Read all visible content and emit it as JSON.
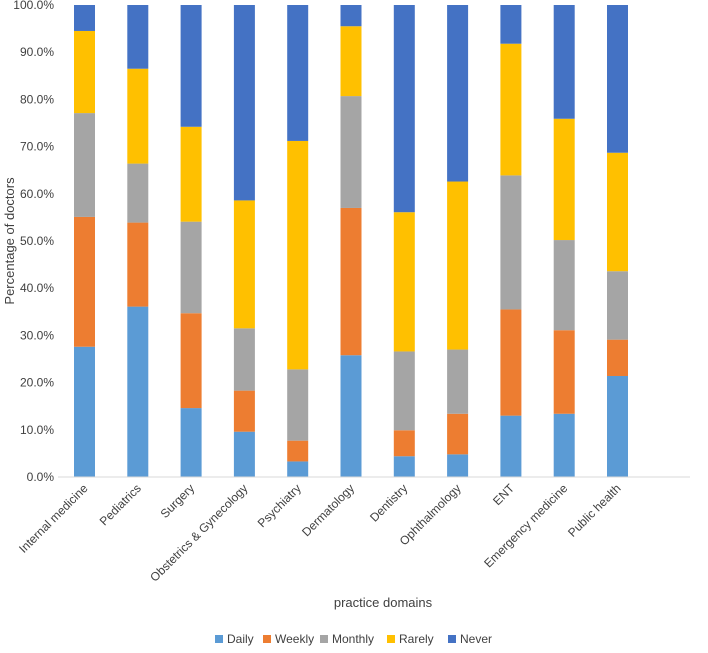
{
  "chart_data": {
    "type": "bar",
    "stacked": true,
    "title": "",
    "xlabel": "practice domains",
    "ylabel": "Percentage of doctors",
    "ylim": [
      0,
      100
    ],
    "ytick_step": 10,
    "ytick_labels": [
      "0.0%",
      "10.0%",
      "20.0%",
      "30.0%",
      "40.0%",
      "50.0%",
      "60.0%",
      "70.0%",
      "80.0%",
      "90.0%",
      "100.0%"
    ],
    "categories": [
      "Internal medicine",
      "Pediatrics",
      "Surgery",
      "Obstetrics & Gynecology",
      "Psychiatry",
      "Dermatology",
      "Dentistry",
      "Ophthalmology",
      "ENT",
      "Emergency medicine",
      "Public health"
    ],
    "series": [
      {
        "name": "Daily",
        "color": "#5B9BD5",
        "values": [
          27.6,
          36.1,
          14.6,
          9.6,
          3.3,
          25.8,
          4.4,
          4.8,
          13.0,
          13.4,
          21.4
        ]
      },
      {
        "name": "Weekly",
        "color": "#ED7D31",
        "values": [
          27.5,
          17.8,
          20.1,
          8.7,
          4.4,
          31.2,
          5.5,
          8.6,
          22.5,
          17.7,
          7.7
        ]
      },
      {
        "name": "Monthly",
        "color": "#A5A5A5",
        "values": [
          22.0,
          12.5,
          19.4,
          13.2,
          15.1,
          23.7,
          16.7,
          13.6,
          28.4,
          19.1,
          14.5
        ]
      },
      {
        "name": "Rarely",
        "color": "#FFC000",
        "values": [
          17.4,
          20.1,
          20.1,
          27.1,
          48.4,
          14.8,
          29.5,
          35.6,
          27.9,
          25.7,
          25.1
        ]
      },
      {
        "name": "Never",
        "color": "#4472C4",
        "values": [
          5.5,
          13.5,
          25.8,
          41.4,
          28.8,
          4.5,
          43.9,
          37.4,
          8.2,
          24.1,
          31.3
        ]
      }
    ],
    "legend_position": "bottom",
    "grid": false
  }
}
